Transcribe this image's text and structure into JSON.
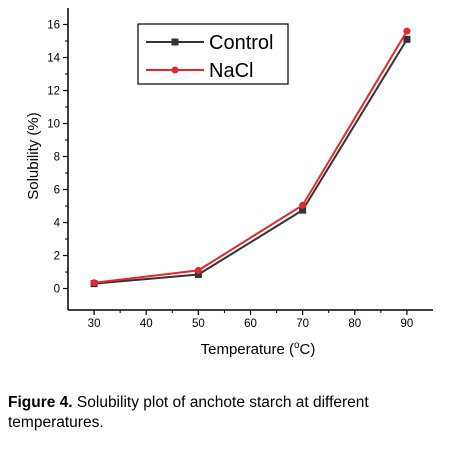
{
  "chart_data": {
    "type": "line",
    "title": "",
    "xlabel": "Temperature (°C)",
    "xlabel_main": "Temperature (",
    "xlabel_sup": "o",
    "xlabel_tail": "C)",
    "ylabel": "Solubility (%)",
    "x": [
      30,
      50,
      70,
      90
    ],
    "xticks": [
      "30",
      "40",
      "50",
      "60",
      "70",
      "80",
      "90"
    ],
    "xlim": [
      25,
      95
    ],
    "yticks": [
      "0",
      "2",
      "4",
      "6",
      "8",
      "10",
      "12",
      "14",
      "16"
    ],
    "ylim": [
      -1.3,
      17
    ],
    "grid": false,
    "legend_position": "top-left",
    "series": [
      {
        "name": "Control",
        "values": [
          0.3,
          0.85,
          4.75,
          15.1
        ],
        "color": "#333333",
        "marker": "square"
      },
      {
        "name": "NaCl",
        "values": [
          0.35,
          1.1,
          5.05,
          15.6
        ],
        "color": "#e8252b",
        "marker": "circle"
      }
    ]
  },
  "caption": {
    "label": "Figure 4.",
    "text": " Solubility plot of anchote starch at different temperatures."
  }
}
